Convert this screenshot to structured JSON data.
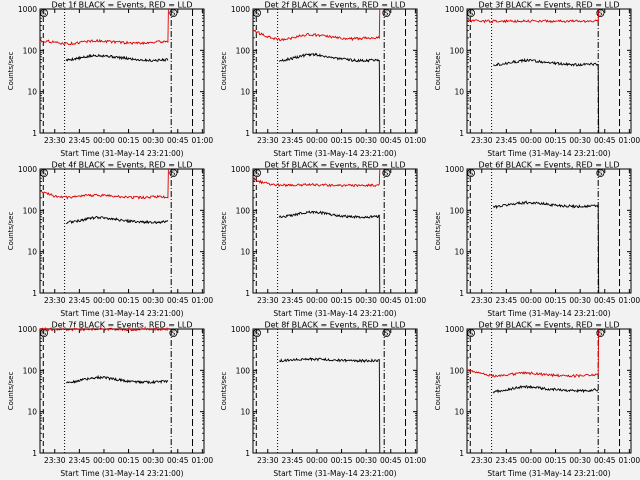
{
  "figure": {
    "background": "#f2f2f2",
    "event_color": "#000000",
    "lld_color": "#dd0000"
  },
  "chart_data": [
    {
      "type": "line",
      "title": "Det 1f BLACK = Events, RED = LLD",
      "xlabel": "Start Time (31-May-14 23:21:00)",
      "ylabel": "Counts/sec",
      "x_ticks": [
        "23:30",
        "23:45",
        "00:00",
        "00:15",
        "00:30",
        "00:45",
        "01:00"
      ],
      "y_ticks": [
        "1",
        "10",
        "100",
        "1000"
      ],
      "y_scale": "log",
      "ylim": [
        1,
        1000
      ],
      "saa_markers": [
        "S",
        "S"
      ],
      "series": [
        {
          "kind": "events",
          "start": "23:37",
          "end": "00:39",
          "values": [
            58,
            62,
            66,
            72,
            76,
            74,
            70,
            66,
            63,
            60,
            58,
            57,
            58,
            60
          ]
        },
        {
          "kind": "lld",
          "start": "23:21",
          "end": "00:39",
          "values": [
            170,
            165,
            150,
            145,
            148,
            165,
            170,
            168,
            160,
            155,
            150,
            150,
            155,
            160,
            165
          ],
          "spike_to": 1000
        }
      ]
    },
    {
      "type": "line",
      "title": "Det 2f BLACK = Events, RED = LLD",
      "xlabel": "Start Time (31-May-14 23:21:00)",
      "ylabel": "Counts/sec",
      "x_ticks": [
        "23:30",
        "23:45",
        "00:00",
        "00:15",
        "00:30",
        "00:45",
        "01:00"
      ],
      "y_ticks": [
        "1",
        "10",
        "100",
        "1000"
      ],
      "y_scale": "log",
      "ylim": [
        1,
        1000
      ],
      "saa_markers": [
        "S",
        "S"
      ],
      "series": [
        {
          "kind": "events",
          "start": "23:37",
          "end": "00:38",
          "values": [
            55,
            60,
            66,
            74,
            80,
            78,
            72,
            66,
            62,
            59,
            57,
            56,
            58,
            60
          ],
          "drop_to": 1
        },
        {
          "kind": "lld",
          "start": "23:21",
          "end": "00:38",
          "values": [
            300,
            240,
            200,
            180,
            190,
            220,
            240,
            235,
            220,
            205,
            195,
            190,
            195,
            200,
            210
          ],
          "spike_to": 1000
        }
      ]
    },
    {
      "type": "line",
      "title": "Det 3f BLACK = Events, RED = LLD",
      "xlabel": "Start Time (31-May-14 23:21:00)",
      "ylabel": "Counts/sec",
      "x_ticks": [
        "23:30",
        "23:45",
        "00:00",
        "00:15",
        "00:30",
        "00:45",
        "01:00"
      ],
      "y_ticks": [
        "1",
        "10",
        "100",
        "1000"
      ],
      "y_scale": "log",
      "ylim": [
        1,
        1000
      ],
      "saa_markers": [
        "S",
        "S"
      ],
      "series": [
        {
          "kind": "events",
          "start": "23:37",
          "end": "00:41",
          "values": [
            45,
            47,
            50,
            54,
            57,
            56,
            53,
            50,
            48,
            46,
            45,
            45,
            46,
            47
          ],
          "drop_to": 1
        },
        {
          "kind": "lld",
          "start": "23:21",
          "end": "00:41",
          "values": [
            520,
            515,
            510,
            505,
            505,
            510,
            515,
            515,
            510,
            505,
            505,
            505,
            510,
            510,
            510
          ],
          "spike_to": 1000
        }
      ]
    },
    {
      "type": "line",
      "title": "Det 4f BLACK = Events, RED = LLD",
      "xlabel": "Start Time (31-May-14 23:21:00)",
      "ylabel": "Counts/sec",
      "x_ticks": [
        "23:30",
        "23:45",
        "00:00",
        "00:15",
        "00:30",
        "00:45",
        "01:00"
      ],
      "y_ticks": [
        "1",
        "10",
        "100",
        "1000"
      ],
      "y_scale": "log",
      "ylim": [
        1,
        1000
      ],
      "saa_markers": [
        "S",
        "S"
      ],
      "series": [
        {
          "kind": "events",
          "start": "23:37",
          "end": "00:39",
          "values": [
            50,
            54,
            58,
            64,
            68,
            66,
            62,
            58,
            55,
            53,
            52,
            51,
            52,
            54
          ]
        },
        {
          "kind": "lld",
          "start": "23:21",
          "end": "00:39",
          "values": [
            300,
            240,
            215,
            205,
            210,
            225,
            235,
            230,
            220,
            212,
            208,
            205,
            208,
            212,
            215
          ],
          "spike_to": 1000
        }
      ]
    },
    {
      "type": "line",
      "title": "Det 5f BLACK = Events, RED = LLD",
      "xlabel": "Start Time (31-May-14 23:21:00)",
      "ylabel": "Counts/sec",
      "x_ticks": [
        "23:30",
        "23:45",
        "00:00",
        "00:15",
        "00:30",
        "00:45",
        "01:00"
      ],
      "y_ticks": [
        "1",
        "10",
        "100",
        "1000"
      ],
      "y_scale": "log",
      "ylim": [
        1,
        1000
      ],
      "saa_markers": [
        "S",
        "S"
      ],
      "series": [
        {
          "kind": "events",
          "start": "23:37",
          "end": "00:38",
          "values": [
            68,
            72,
            78,
            86,
            92,
            90,
            84,
            78,
            74,
            71,
            69,
            68,
            69,
            72
          ],
          "drop_to": 1
        },
        {
          "kind": "lld",
          "start": "23:21",
          "end": "00:38",
          "values": [
            560,
            480,
            430,
            410,
            405,
            410,
            415,
            415,
            410,
            405,
            400,
            400,
            402,
            405,
            405
          ],
          "spike_to": 1000
        }
      ]
    },
    {
      "type": "line",
      "title": "Det 6f BLACK = Events, RED = LLD",
      "xlabel": "Start Time (31-May-14 23:21:00)",
      "ylabel": "Counts/sec",
      "x_ticks": [
        "23:30",
        "23:45",
        "00:00",
        "00:15",
        "00:30",
        "00:45",
        "01:00"
      ],
      "y_ticks": [
        "1",
        "10",
        "100",
        "1000"
      ],
      "y_scale": "log",
      "ylim": [
        1,
        1000
      ],
      "saa_markers": [
        "S",
        "S"
      ],
      "series": [
        {
          "kind": "events",
          "start": "23:37",
          "end": "00:41",
          "values": [
            120,
            128,
            138,
            148,
            155,
            152,
            145,
            138,
            132,
            128,
            125,
            124,
            126,
            130
          ],
          "drop_to": 1
        }
      ]
    },
    {
      "type": "line",
      "title": "Det 7f BLACK = Events, RED = LLD",
      "xlabel": "Start Time (31-May-14 23:21:00)",
      "ylabel": "Counts/sec",
      "x_ticks": [
        "23:30",
        "23:45",
        "00:00",
        "00:15",
        "00:30",
        "00:45",
        "01:00"
      ],
      "y_ticks": [
        "1",
        "10",
        "100",
        "1000"
      ],
      "y_scale": "log",
      "ylim": [
        1,
        1000
      ],
      "saa_markers": [
        "S",
        "S"
      ],
      "series": [
        {
          "kind": "events",
          "start": "23:37",
          "end": "00:39",
          "values": [
            50,
            54,
            58,
            64,
            68,
            66,
            62,
            58,
            55,
            53,
            52,
            52,
            53,
            55
          ]
        },
        {
          "kind": "lld",
          "start": "23:21",
          "end": "00:39",
          "values": [
            1000,
            990,
            985,
            980,
            985,
            990,
            995,
            990,
            985,
            980,
            980,
            985,
            990,
            990,
            995
          ],
          "spike_to": 1000
        }
      ]
    },
    {
      "type": "line",
      "title": "Det 8f BLACK = Events, RED = LLD",
      "xlabel": "Start Time (31-May-14 23:21:00)",
      "ylabel": "Counts/sec",
      "x_ticks": [
        "23:30",
        "23:45",
        "00:00",
        "00:15",
        "00:30",
        "00:45",
        "01:00"
      ],
      "y_ticks": [
        "1",
        "10",
        "100",
        "1000"
      ],
      "y_scale": "log",
      "ylim": [
        1,
        1000
      ],
      "saa_markers": [
        "S",
        "S"
      ],
      "series": [
        {
          "kind": "events",
          "start": "23:37",
          "end": "00:38",
          "values": [
            170,
            175,
            180,
            185,
            188,
            186,
            182,
            178,
            175,
            172,
            170,
            170,
            172,
            175
          ],
          "drop_to": 1
        }
      ]
    },
    {
      "type": "line",
      "title": "Det 9f BLACK = Events, RED = LLD",
      "xlabel": "Start Time (31-May-14 23:21:00)",
      "ylabel": "Counts/sec",
      "x_ticks": [
        "23:30",
        "23:45",
        "00:00",
        "00:15",
        "00:30",
        "00:45",
        "01:00"
      ],
      "y_ticks": [
        "1",
        "10",
        "100",
        "1000"
      ],
      "y_scale": "log",
      "ylim": [
        1,
        1000
      ],
      "saa_markers": [
        "S",
        "S"
      ],
      "series": [
        {
          "kind": "events",
          "start": "23:37",
          "end": "00:41",
          "values": [
            30,
            32,
            35,
            38,
            40,
            39,
            37,
            35,
            34,
            33,
            32,
            32,
            33,
            34
          ]
        },
        {
          "kind": "lld",
          "start": "23:21",
          "end": "00:41",
          "values": [
            105,
            92,
            80,
            72,
            74,
            82,
            86,
            84,
            80,
            76,
            74,
            73,
            74,
            76,
            78
          ],
          "spike_to": 1000
        }
      ]
    }
  ]
}
